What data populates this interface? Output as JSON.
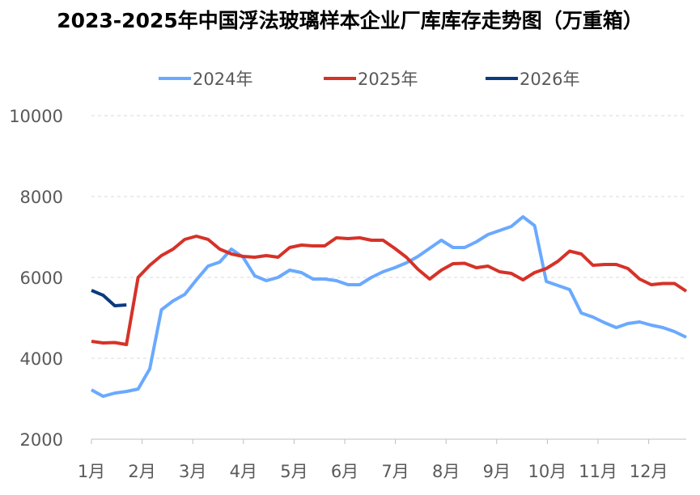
{
  "chart_data": {
    "type": "line",
    "title": "2023-2025年中国浮法玻璃样本企业厂库库存走势图（万重箱）",
    "xlabel": "",
    "ylabel": "",
    "ylim": [
      2000,
      10000
    ],
    "yticks": [
      "2000",
      "4000",
      "6000",
      "8000",
      "10000"
    ],
    "xticks": [
      "1月",
      "2月",
      "3月",
      "4月",
      "5月",
      "6月",
      "7月",
      "8月",
      "9月",
      "10月",
      "11月",
      "12月"
    ],
    "grid": true,
    "legend_position": "top",
    "series": [
      {
        "name": "2024年",
        "color": "#6aa9ff",
        "values": [
          3220,
          3060,
          3140,
          3180,
          3240,
          3740,
          5200,
          5420,
          5580,
          5940,
          6280,
          6380,
          6700,
          6500,
          6040,
          5920,
          6000,
          6180,
          6120,
          5960,
          5960,
          5920,
          5820,
          5820,
          6000,
          6140,
          6240,
          6360,
          6520,
          6720,
          6920,
          6740,
          6740,
          6880,
          7060,
          7160,
          7260,
          7500,
          7280,
          5900,
          5800,
          5700,
          5120,
          5020,
          4880,
          4760,
          4860,
          4900,
          4820,
          4760,
          4660,
          4520
        ]
      },
      {
        "name": "2025年",
        "color": "#d63228",
        "values": [
          4420,
          4380,
          4390,
          4340,
          6000,
          6300,
          6540,
          6700,
          6940,
          7020,
          6940,
          6700,
          6580,
          6520,
          6500,
          6540,
          6500,
          6740,
          6800,
          6780,
          6780,
          6980,
          6960,
          6980,
          6920,
          6920,
          6720,
          6500,
          6200,
          5960,
          6180,
          6340,
          6350,
          6240,
          6280,
          6140,
          6100,
          5940,
          6120,
          6220,
          6400,
          6650,
          6580,
          6300,
          6320,
          6320,
          6220,
          5960,
          5820,
          5850,
          5850,
          5660
        ]
      },
      {
        "name": "2026年",
        "color": "#0a3a80",
        "values": [
          5680,
          5560,
          5300,
          5320
        ]
      }
    ]
  }
}
